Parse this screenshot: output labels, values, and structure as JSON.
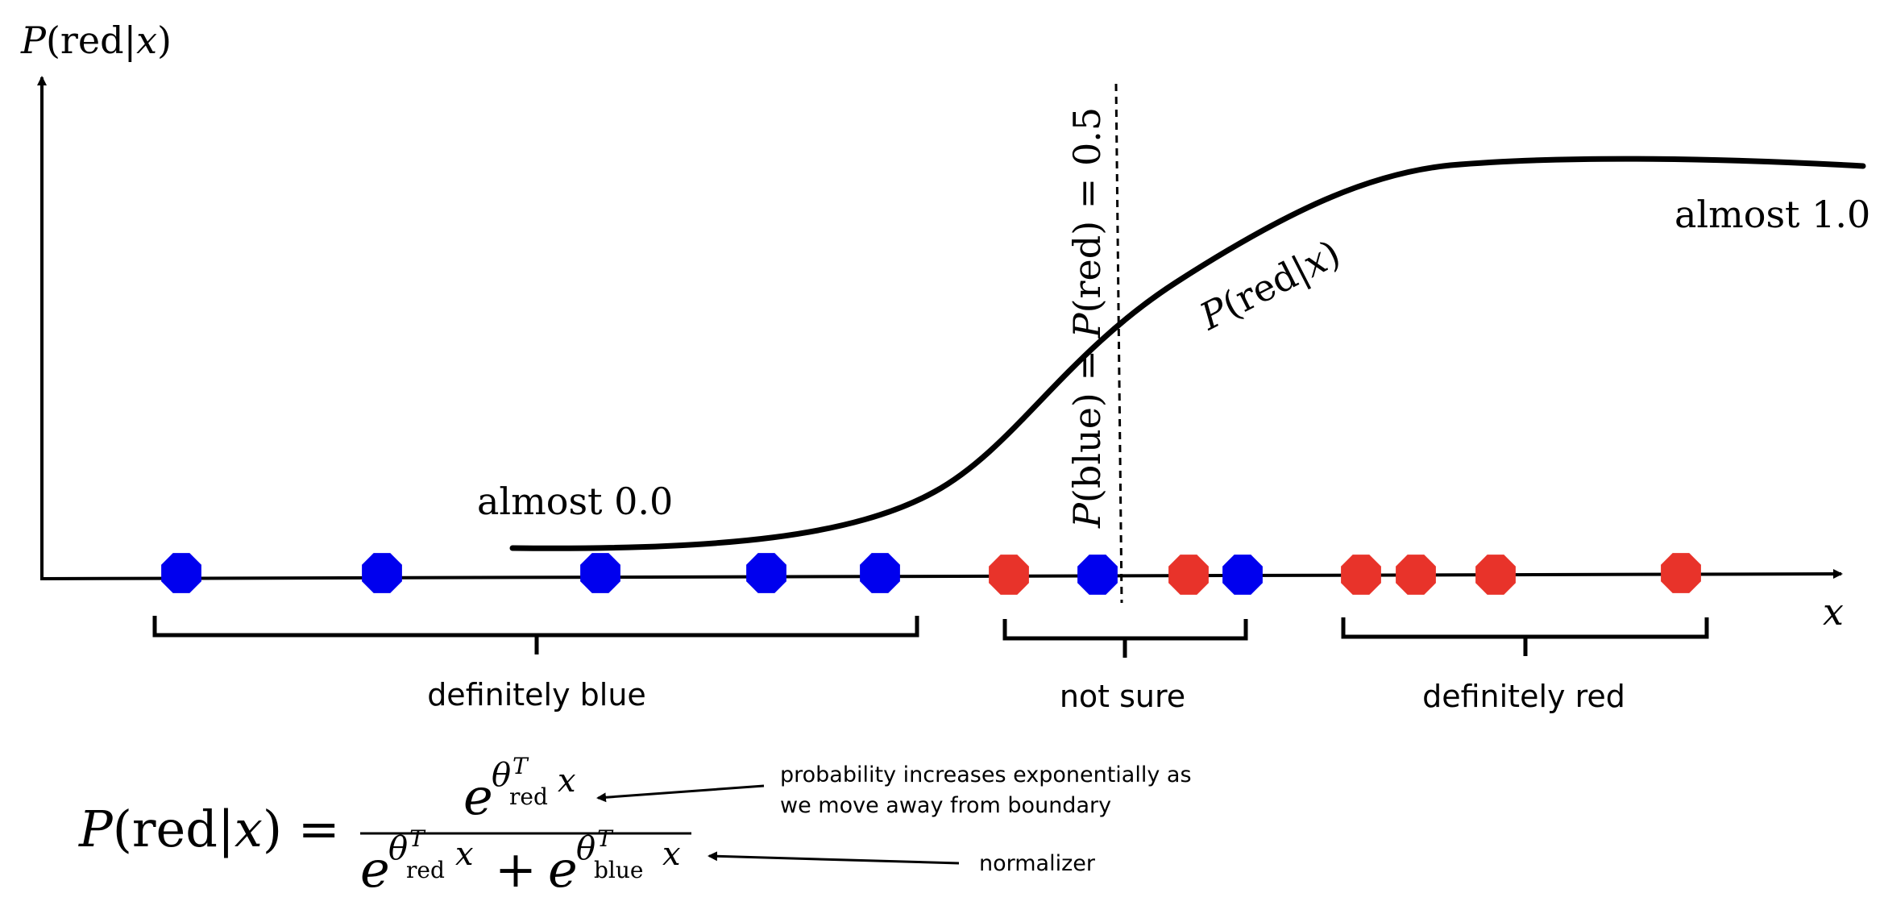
{
  "y_axis": {
    "label_var": "P",
    "label_arg": "red",
    "label_given": "x"
  },
  "x_axis": {
    "label": "x"
  },
  "curve_label": {
    "var": "P",
    "arg": "red",
    "given": "x"
  },
  "annotations": {
    "almost_low": "almost 0.0",
    "almost_high": "almost 1.0",
    "boundary": {
      "left_var": "P",
      "left_arg": "blue",
      "right_var": "P",
      "right_arg": "red",
      "value": "0.5"
    }
  },
  "braces": {
    "blue": "definitely blue",
    "unsure": "not sure",
    "red": "definitely red"
  },
  "points": [
    {
      "color": "blue"
    },
    {
      "color": "blue"
    },
    {
      "color": "blue"
    },
    {
      "color": "blue"
    },
    {
      "color": "blue"
    },
    {
      "color": "red"
    },
    {
      "color": "blue"
    },
    {
      "color": "red"
    },
    {
      "color": "blue"
    },
    {
      "color": "red"
    },
    {
      "color": "red"
    },
    {
      "color": "red"
    },
    {
      "color": "red"
    }
  ],
  "colors": {
    "blue": "#0000ee",
    "red": "#e8332a",
    "ink": "#000000"
  },
  "formula": {
    "lhs_var": "P",
    "lhs_arg": "red",
    "lhs_given": "x",
    "equals": "=",
    "exp_base": "e",
    "theta": "θ",
    "transpose": "T",
    "sub_red": "red",
    "sub_blue": "blue",
    "var": "x",
    "plus": "+"
  },
  "notes": {
    "numerator_line1": "probability increases exponentially as",
    "numerator_line2": "we move away from boundary",
    "normalizer": "normalizer"
  }
}
